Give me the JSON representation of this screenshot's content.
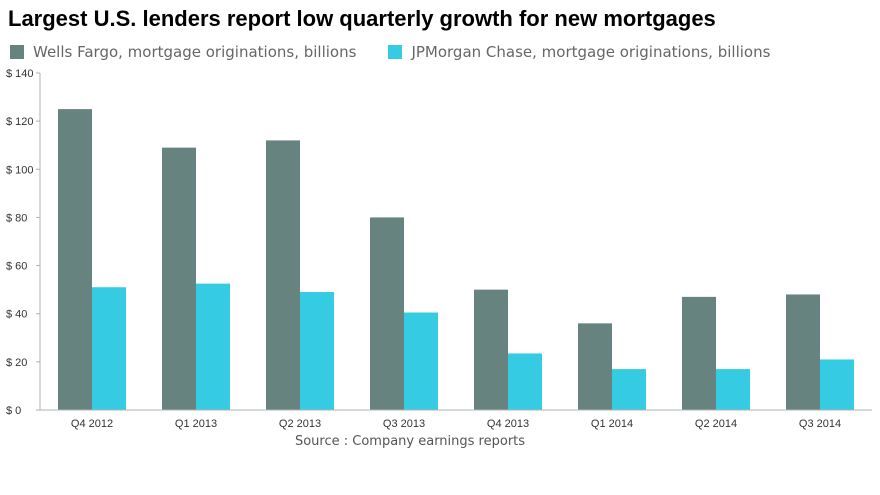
{
  "chart_data": {
    "type": "bar",
    "title": "Largest U.S. lenders report low quarterly growth for new mortgages",
    "categories": [
      "Q4 2012",
      "Q1 2013",
      "Q2 2013",
      "Q3 2013",
      "Q4 2013",
      "Q1 2014",
      "Q2 2014",
      "Q3 2014"
    ],
    "series": [
      {
        "name": "Wells Fargo, mortgage originations, billions",
        "color": "#678380",
        "values": [
          125,
          109,
          112,
          80,
          50,
          36,
          47,
          48
        ]
      },
      {
        "name": "JPMorgan Chase, mortgage originations, billions",
        "color": "#35cce3",
        "values": [
          51,
          52.5,
          49,
          40.5,
          23.5,
          17,
          17,
          21
        ]
      }
    ],
    "ylim": [
      0,
      140
    ],
    "yticks": [
      0,
      20,
      40,
      60,
      80,
      100,
      120,
      140
    ],
    "ytick_labels": [
      "$ 0",
      "$ 20",
      "$ 40",
      "$ 60",
      "$ 80",
      "$ 100",
      "$ 120",
      "$ 140"
    ],
    "xlabel": "",
    "ylabel": "",
    "grid": false,
    "legend_position": "top-left",
    "source": "Source : Company earnings reports"
  }
}
